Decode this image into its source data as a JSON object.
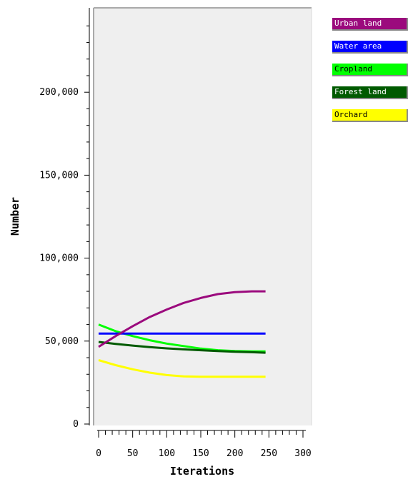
{
  "chart_data": {
    "type": "line",
    "title": "",
    "xlabel": "Iterations",
    "ylabel": "Number",
    "xlim": [
      0,
      300
    ],
    "ylim": [
      0,
      250000
    ],
    "x_ticks": [
      "0",
      "50",
      "100",
      "150",
      "200",
      "250",
      "300"
    ],
    "y_ticks": [
      "0",
      "50,000",
      "100,000",
      "150,000",
      "200,000"
    ],
    "grid": false,
    "legend_position": "right",
    "plot_background": "#efefef",
    "series": [
      {
        "name": "Urban land",
        "color": "#9b0a7d",
        "text_color": "#ffffff",
        "x": [
          0,
          25,
          50,
          75,
          100,
          125,
          150,
          175,
          200,
          225,
          245
        ],
        "y": [
          46500,
          53000,
          59000,
          64500,
          69000,
          73000,
          76000,
          78300,
          79500,
          80000,
          80000
        ]
      },
      {
        "name": "Water area",
        "color": "#0000ff",
        "text_color": "#ffffff",
        "x": [
          0,
          245
        ],
        "y": [
          54500,
          54500
        ]
      },
      {
        "name": "Cropland",
        "color": "#00ff00",
        "text_color": "#000000",
        "x": [
          0,
          25,
          50,
          75,
          100,
          125,
          150,
          175,
          200,
          225,
          245
        ],
        "y": [
          60000,
          56000,
          53000,
          50500,
          48500,
          47000,
          45500,
          44500,
          44000,
          43800,
          43800
        ]
      },
      {
        "name": "Forest land",
        "color": "#005a00",
        "text_color": "#ffffff",
        "x": [
          0,
          25,
          50,
          75,
          100,
          125,
          150,
          175,
          200,
          225,
          245
        ],
        "y": [
          49500,
          48300,
          47300,
          46400,
          45600,
          45000,
          44500,
          44000,
          43600,
          43300,
          43000
        ]
      },
      {
        "name": "Orchard",
        "color": "#ffff00",
        "text_color": "#000000",
        "x": [
          0,
          25,
          50,
          75,
          100,
          125,
          150,
          175,
          200,
          225,
          245
        ],
        "y": [
          38500,
          35500,
          33000,
          31000,
          29500,
          28700,
          28500,
          28500,
          28500,
          28500,
          28500
        ]
      }
    ]
  }
}
